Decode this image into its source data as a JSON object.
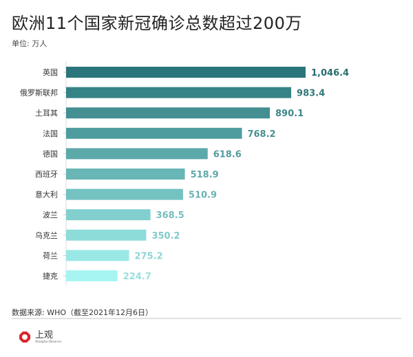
{
  "title": "欧洲11个国家新冠确诊总数超过200万",
  "unit": "单位: 万人",
  "source": "数据来源: WHO（截至2021年12月6日）",
  "logo": {
    "text": "上观",
    "subtext": "Shanghai Observer",
    "color": "#d9262c"
  },
  "chart_data": {
    "type": "bar",
    "orientation": "horizontal",
    "categories": [
      "英国",
      "俄罗斯联邦",
      "土耳其",
      "法国",
      "德国",
      "西班牙",
      "意大利",
      "波兰",
      "乌克兰",
      "荷兰",
      "捷克"
    ],
    "values": [
      1046.4,
      983.4,
      890.1,
      768.2,
      618.6,
      518.9,
      510.9,
      368.5,
      350.2,
      275.2,
      224.7
    ],
    "labels": [
      "1,046.4",
      "983.4",
      "890.1",
      "768.2",
      "618.6",
      "518.9",
      "510.9",
      "368.5",
      "350.2",
      "275.2",
      "224.7"
    ],
    "xlim": [
      0,
      1046.4
    ],
    "grid": false,
    "color_range": [
      "#2a767a",
      "#a6f5f2"
    ]
  }
}
